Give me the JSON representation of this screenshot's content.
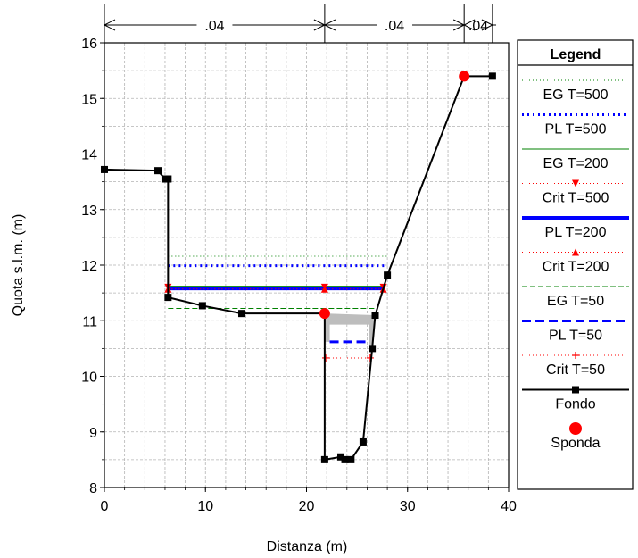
{
  "chart_data": {
    "type": "line",
    "title": "",
    "xlabel": "Distanza (m)",
    "ylabel": "Quota s.l.m. (m)",
    "xlim": [
      0,
      40
    ],
    "ylim": [
      8,
      16
    ],
    "xticks": [
      0,
      10,
      20,
      30,
      40
    ],
    "yticks": [
      8,
      9,
      10,
      11,
      12,
      13,
      14,
      15,
      16
    ],
    "grid": true,
    "legend_title": "Legend",
    "legend_position": "right",
    "manning": [
      {
        "label": ".04",
        "from": 0,
        "to": 21.8
      },
      {
        "label": ".04",
        "from": 21.8,
        "to": 35.6
      },
      {
        "label": ".04",
        "from": 35.6,
        "to": 38.4
      }
    ],
    "series": [
      {
        "name": "EG T=500",
        "color": "#008000",
        "style": "dotted",
        "x": [
          6.3,
          28.1
        ],
        "y": [
          12.16,
          12.16
        ]
      },
      {
        "name": "PL T=500",
        "color": "#0000ff",
        "style": "dotted-thick",
        "x": [
          6.3,
          28.0
        ],
        "y": [
          11.99,
          11.99
        ]
      },
      {
        "name": "EG T=200",
        "color": "#008000",
        "style": "solid-thin",
        "x": [
          6.3,
          27.6
        ],
        "y": [
          11.62,
          11.62
        ]
      },
      {
        "name": "Crit T=500",
        "color": "#ff0000",
        "style": "dotted-marker-down",
        "x": [
          6.3,
          21.8,
          27.6
        ],
        "y": [
          11.6,
          11.6,
          11.6
        ]
      },
      {
        "name": "PL T=200",
        "color": "#0000ff",
        "style": "solid-thick",
        "x": [
          6.3,
          27.6
        ],
        "y": [
          11.58,
          11.58
        ]
      },
      {
        "name": "Crit T=200",
        "color": "#ff0000",
        "style": "dotted-marker-up",
        "x": [
          6.3,
          21.8,
          27.6
        ],
        "y": [
          11.57,
          11.57,
          11.57
        ]
      },
      {
        "name": "EG T=50",
        "color": "#008000",
        "style": "dashed-thin",
        "x": [
          6.3,
          27.0
        ],
        "y": [
          11.22,
          11.22
        ]
      },
      {
        "name": "PL T=50",
        "color": "#0000ff",
        "style": "dashed-thick",
        "x": [
          22.3,
          26.2
        ],
        "y": [
          10.62,
          10.62
        ]
      },
      {
        "name": "Crit T=50",
        "color": "#ff0000",
        "style": "dotted-marker-plus",
        "x": [
          21.9,
          26.3
        ],
        "y": [
          10.33,
          10.33
        ]
      },
      {
        "name": "Fondo",
        "color": "#000000",
        "style": "solid-square",
        "x": [
          0,
          5.3,
          6.0,
          6.3,
          6.3,
          9.7,
          13.6,
          21.8,
          21.8,
          23.4,
          23.8,
          24.4,
          25.6,
          26.5,
          26.8,
          28.0,
          35.6,
          38.4
        ],
        "y": [
          13.72,
          13.7,
          13.55,
          13.55,
          11.42,
          11.27,
          11.13,
          11.13,
          8.5,
          8.55,
          8.5,
          8.5,
          8.82,
          10.5,
          11.1,
          11.82,
          15.4,
          15.4
        ]
      },
      {
        "name": "Sponda",
        "color": "#ff0000",
        "style": "dot",
        "x": [
          21.8,
          35.6
        ],
        "y": [
          11.13,
          15.4
        ]
      }
    ],
    "gray_region": {
      "x": [
        21.8,
        26.8,
        26.5,
        26.2,
        26.2,
        22.3,
        22.3,
        21.8
      ],
      "y": [
        11.13,
        11.1,
        10.5,
        10.5,
        10.93,
        10.93,
        10.62,
        10.62
      ]
    }
  }
}
